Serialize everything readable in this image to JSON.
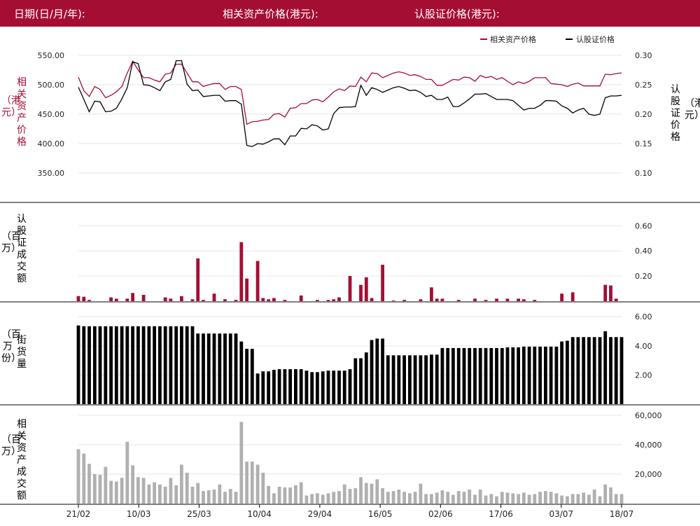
{
  "header": {
    "date_label": "日期(日/月/年):",
    "asset_price_label": "相关资产价格(港元):",
    "warrant_price_label": "认股证价格(港元):"
  },
  "colors": {
    "brand": "#a50e33",
    "warrant": "#000000",
    "volume_bar": "#a50e33",
    "outstanding_bar": "#000000",
    "turnover_bar": "#b0b0b0",
    "grid": "#e6e6e6"
  },
  "axis_labels": {
    "asset_price": "相关资产价格",
    "asset_price_unit": "（港元）",
    "warrant_price": "认股证价格",
    "warrant_price_unit": "（港元）",
    "warrant_volume": "认股证成交额",
    "warrant_volume_unit": "（百万）",
    "outstanding": "街货量",
    "outstanding_unit": "（百万份）",
    "asset_turnover": "相关资产成交额",
    "asset_turnover_unit": "（百万）"
  },
  "chart_data": [
    {
      "type": "line",
      "x_tick_labels": [
        "21/02",
        "10/03",
        "25/03",
        "10/04",
        "29/04",
        "16/05",
        "02/06",
        "17/06",
        "03/07",
        "18/07"
      ],
      "legend": [
        "相关资产价格",
        "认股证价格"
      ],
      "legend_position": "top-right",
      "grid": true,
      "y_left": {
        "ylim": [
          350,
          550
        ],
        "ticks": [
          "550.00",
          "500.00",
          "450.00",
          "400.00",
          "350.00"
        ]
      },
      "y_right": {
        "ylim": [
          0.1,
          0.3
        ],
        "ticks": [
          "0.30",
          "0.25",
          "0.20",
          "0.15",
          "0.10"
        ]
      },
      "series": [
        {
          "name": "相关资产价格",
          "axis": "left",
          "values": [
            513,
            490,
            480,
            497,
            492,
            478,
            482,
            488,
            497,
            520,
            540,
            525,
            512,
            512,
            508,
            505,
            518,
            520,
            535,
            535,
            520,
            505,
            505,
            497,
            500,
            502,
            502,
            492,
            497,
            497,
            492,
            433,
            437,
            438,
            440,
            441,
            450,
            451,
            445,
            460,
            461,
            468,
            468,
            474,
            475,
            471,
            479,
            488,
            493,
            490,
            498,
            497,
            513,
            505,
            520,
            519,
            512,
            516,
            520,
            522,
            520,
            516,
            517,
            514,
            509,
            509,
            499,
            499,
            504,
            509,
            508,
            513,
            512,
            506,
            516,
            512,
            514,
            509,
            512,
            506,
            500,
            505,
            502,
            506,
            512,
            512,
            512,
            502,
            501,
            500,
            497,
            501,
            503,
            498,
            498,
            498,
            498,
            518,
            517,
            519,
            520
          ]
        },
        {
          "name": "认股证价格",
          "axis": "right",
          "values": [
            0.246,
            0.225,
            0.204,
            0.222,
            0.221,
            0.204,
            0.205,
            0.21,
            0.226,
            0.245,
            0.289,
            0.286,
            0.25,
            0.249,
            0.245,
            0.24,
            0.255,
            0.259,
            0.291,
            0.291,
            0.251,
            0.24,
            0.241,
            0.23,
            0.231,
            0.232,
            0.232,
            0.222,
            0.223,
            0.223,
            0.217,
            0.147,
            0.145,
            0.15,
            0.149,
            0.153,
            0.158,
            0.158,
            0.148,
            0.163,
            0.163,
            0.176,
            0.175,
            0.182,
            0.18,
            0.173,
            0.175,
            0.201,
            0.211,
            0.212,
            0.212,
            0.213,
            0.249,
            0.232,
            0.245,
            0.242,
            0.237,
            0.241,
            0.245,
            0.247,
            0.244,
            0.24,
            0.241,
            0.237,
            0.23,
            0.232,
            0.225,
            0.225,
            0.229,
            0.213,
            0.213,
            0.219,
            0.226,
            0.234,
            0.234,
            0.235,
            0.23,
            0.225,
            0.225,
            0.225,
            0.223,
            0.215,
            0.207,
            0.21,
            0.21,
            0.215,
            0.223,
            0.223,
            0.222,
            0.214,
            0.21,
            0.202,
            0.207,
            0.21,
            0.2,
            0.198,
            0.2,
            0.228,
            0.231,
            0.231,
            0.232
          ]
        }
      ]
    },
    {
      "type": "bar",
      "name": "认股证成交额",
      "ylim": [
        0,
        0.68
      ],
      "ticks": [
        "0.60",
        "0.40",
        "0.20"
      ],
      "values": [
        0.04,
        0.035,
        0.01,
        0,
        0,
        0,
        0.03,
        0.02,
        0,
        0.02,
        0.065,
        0,
        0.05,
        0,
        0,
        0,
        0.03,
        0.02,
        0,
        0.04,
        0,
        0.015,
        0.34,
        0.01,
        0,
        0.06,
        0,
        0.015,
        0,
        0.01,
        0.47,
        0.18,
        0,
        0.32,
        0.025,
        0.015,
        0.025,
        0,
        0.01,
        0,
        0,
        0.045,
        0,
        0,
        0.01,
        0,
        0.01,
        0.015,
        0.03,
        0,
        0.2,
        0,
        0.13,
        0.19,
        0.025,
        0,
        0.29,
        0,
        0.005,
        0,
        0.01,
        0,
        0,
        0.015,
        0,
        0.11,
        0.02,
        0.02,
        0,
        0,
        0.01,
        0,
        0,
        0.02,
        0,
        0.01,
        0,
        0.02,
        0,
        0.02,
        0,
        0.02,
        0.015,
        0,
        0.01,
        0,
        0,
        0,
        0,
        0.06,
        0,
        0.07,
        0,
        0,
        0,
        0,
        0,
        0.13,
        0.125,
        0.02,
        0
      ]
    },
    {
      "type": "bar",
      "name": "街货量",
      "ylim": [
        0,
        6.3
      ],
      "ticks": [
        "6.00",
        "4.00",
        "2.00"
      ],
      "values": [
        5.4,
        5.35,
        5.35,
        5.35,
        5.35,
        5.35,
        5.35,
        5.35,
        5.35,
        5.35,
        5.35,
        5.35,
        5.35,
        5.35,
        5.35,
        5.35,
        5.35,
        5.35,
        5.35,
        5.35,
        5.35,
        5.35,
        4.85,
        4.85,
        4.85,
        4.85,
        4.85,
        4.85,
        4.85,
        4.85,
        4.3,
        3.8,
        3.8,
        2.1,
        2.25,
        2.25,
        2.35,
        2.4,
        2.4,
        2.4,
        2.4,
        2.4,
        2.3,
        2.2,
        2.2,
        2.25,
        2.3,
        2.3,
        2.3,
        2.3,
        2.4,
        3.15,
        3.15,
        3.55,
        4.4,
        4.5,
        4.5,
        3.35,
        3.35,
        3.35,
        3.35,
        3.35,
        3.35,
        3.35,
        3.35,
        3.4,
        3.4,
        3.85,
        3.85,
        3.85,
        3.85,
        3.85,
        3.85,
        3.85,
        3.85,
        3.85,
        3.85,
        3.85,
        3.85,
        3.9,
        3.9,
        3.9,
        3.95,
        3.95,
        3.95,
        3.95,
        3.95,
        3.95,
        3.95,
        4.3,
        4.35,
        4.6,
        4.6,
        4.6,
        4.6,
        4.6,
        4.6,
        5.0,
        4.6,
        4.6,
        4.6
      ]
    },
    {
      "type": "bar",
      "name": "相关资产成交额",
      "ylim": [
        0,
        60000
      ],
      "ticks": [
        "60,000",
        "40,000",
        "20,000"
      ],
      "values": [
        37000,
        34000,
        27000,
        20000,
        19500,
        25000,
        15500,
        15000,
        17500,
        42000,
        26000,
        18000,
        17500,
        13000,
        14500,
        13000,
        11500,
        17500,
        12500,
        26500,
        21000,
        11500,
        14000,
        8500,
        9000,
        9500,
        13000,
        8000,
        10000,
        8000,
        55500,
        28500,
        28500,
        26500,
        21000,
        12000,
        7000,
        11500,
        11000,
        11000,
        12500,
        14500,
        5500,
        6500,
        7000,
        6000,
        7000,
        8000,
        8500,
        13000,
        10000,
        10500,
        18000,
        14000,
        13500,
        16500,
        10500,
        8000,
        8500,
        9500,
        8000,
        7000,
        8000,
        13500,
        6500,
        6500,
        7500,
        9000,
        8000,
        6000,
        8500,
        8000,
        9500,
        6000,
        9500,
        5500,
        6500,
        5000,
        8000,
        7500,
        7000,
        6500,
        7500,
        6000,
        6500,
        8000,
        8500,
        8000,
        7000,
        5500,
        5000,
        6500,
        6500,
        7500,
        6000,
        9500,
        5000,
        13000,
        11000,
        6500,
        6500
      ]
    }
  ]
}
